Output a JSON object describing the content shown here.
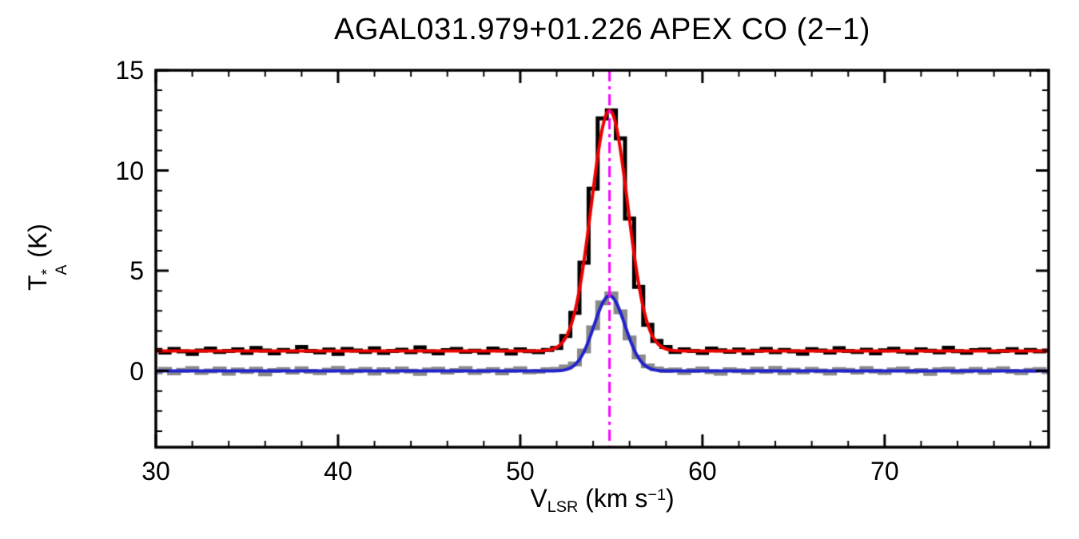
{
  "title": "AGAL031.979+01.226  APEX CO (2−1)",
  "axes": {
    "x": {
      "label_v": "V",
      "label_sub": "LSR",
      "label_mid": " (km s",
      "label_sup": "−1",
      "label_end": ")",
      "min": 30,
      "max": 79,
      "ticks": [
        30,
        40,
        50,
        60,
        70
      ],
      "minor_step": 2
    },
    "y": {
      "label_t": "T",
      "label_sup": "*",
      "label_sub": "A",
      "label_unit": " (K)",
      "min": -3.8,
      "max": 15,
      "ticks": [
        0,
        5,
        10,
        15
      ],
      "minor_step": 1
    }
  },
  "colors": {
    "spectrum_main": "#000000",
    "spectrum_secondary": "#8a8a8a",
    "fit_main": "#ee0000",
    "fit_secondary": "#2222cc",
    "vlsr_marker": "#ff00ff",
    "axis": "#000000",
    "background": "#ffffff"
  },
  "chart_data": {
    "type": "line",
    "title": "AGAL031.979+01.226  APEX CO (2−1)",
    "xlabel": "V_LSR (km s^-1)",
    "ylabel": "T_A^* (K)",
    "xlim": [
      30,
      79
    ],
    "ylim": [
      -3.8,
      15
    ],
    "grid": false,
    "legend": "none",
    "x_start": 30.0,
    "x_step": 0.5,
    "series": [
      {
        "name": "spectrum-black-histogram",
        "style": "histogram",
        "color": "#000000",
        "line_width": 5,
        "baseline_level": 1.0,
        "peak_value": 13.0,
        "peak_velocity": 55.0,
        "values": [
          1.05,
          0.92,
          1.1,
          0.98,
          0.85,
          1.02,
          1.12,
          0.95,
          1.0,
          1.08,
          0.9,
          1.15,
          1.02,
          0.88,
          1.05,
          0.97,
          1.2,
          1.0,
          0.93,
          1.07,
          0.85,
          1.1,
          1.02,
          0.95,
          1.13,
          0.9,
          1.0,
          1.06,
          0.94,
          1.18,
          0.98,
          0.88,
          1.04,
          1.1,
          0.96,
          1.01,
          0.91,
          1.12,
          1.03,
          0.87,
          1.08,
          0.99,
          0.94,
          1.05,
          1.15,
          1.75,
          2.9,
          5.4,
          9.1,
          12.6,
          13.0,
          11.6,
          7.6,
          4.2,
          2.3,
          1.5,
          1.2,
          0.95,
          1.08,
          1.0,
          0.9,
          1.12,
          1.03,
          0.96,
          1.07,
          0.89,
          1.01,
          1.1,
          0.94,
          1.05,
          0.98,
          0.86,
          1.09,
          1.02,
          0.92,
          1.14,
          1.0,
          0.95,
          1.06,
          0.88,
          1.03,
          1.11,
          0.97,
          0.9,
          1.08,
          1.01,
          0.93,
          1.16,
          0.99,
          0.91,
          1.04,
          1.07,
          0.95,
          1.0,
          1.09,
          0.92,
          1.05,
          0.98,
          1.02
        ]
      },
      {
        "name": "spectrum-gray-histogram",
        "style": "histogram",
        "color": "#8a8a8a",
        "line_width": 6,
        "baseline_level": 0.0,
        "peak_value": 3.85,
        "peak_velocity": 55.0,
        "values": [
          -0.05,
          0.08,
          -0.1,
          0.03,
          0.12,
          -0.08,
          0.0,
          0.1,
          -0.12,
          0.05,
          -0.03,
          0.09,
          -0.15,
          0.02,
          0.07,
          -0.06,
          0.11,
          -0.02,
          -0.09,
          0.04,
          0.13,
          -0.07,
          0.01,
          0.08,
          -0.11,
          0.06,
          -0.04,
          0.1,
          -0.01,
          -0.13,
          0.05,
          0.09,
          -0.06,
          0.02,
          0.12,
          -0.08,
          0.0,
          0.07,
          -0.1,
          0.03,
          0.11,
          -0.05,
          -0.02,
          0.06,
          0.08,
          0.2,
          0.35,
          1.0,
          2.15,
          3.4,
          3.85,
          2.95,
          1.65,
          0.7,
          0.25,
          0.1,
          0.02,
          0.05,
          -0.08,
          0.02,
          0.1,
          -0.04,
          -0.12,
          0.06,
          0.01,
          -0.07,
          0.09,
          -0.02,
          0.13,
          -0.09,
          0.04,
          -0.05,
          0.08,
          0.0,
          -0.11,
          0.07,
          0.03,
          -0.06,
          0.12,
          -0.01,
          -0.08,
          0.05,
          0.1,
          -0.03,
          0.02,
          -0.13,
          0.06,
          0.09,
          -0.05,
          0.0,
          0.08,
          -0.07,
          0.04,
          0.11,
          -0.02,
          -0.09,
          0.03,
          0.07,
          -0.04
        ]
      }
    ],
    "fits": [
      {
        "name": "gaussian-fit-main",
        "color": "#ee0000",
        "line_width": 4,
        "baseline": 1.0,
        "amplitude": 12.0,
        "center": 54.9,
        "sigma": 1.0
      },
      {
        "name": "gaussian-fit-secondary",
        "color": "#2222cc",
        "line_width": 4,
        "baseline": 0.0,
        "amplitude": 3.75,
        "center": 54.9,
        "sigma": 0.85
      }
    ],
    "vline": {
      "x": 54.9,
      "color": "#ff00ff",
      "style": "dash-dot",
      "line_width": 3
    }
  }
}
